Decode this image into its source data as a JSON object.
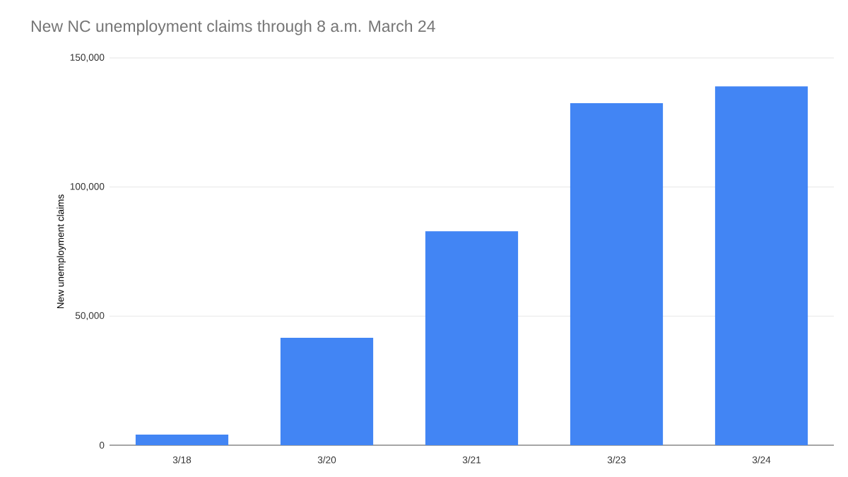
{
  "chart_data": {
    "type": "bar",
    "title": "New NC unemployment claims through 8 a.m. March 24",
    "ylabel": "New unemployment claims",
    "categories": [
      "3/18",
      "3/20",
      "3/21",
      "3/23",
      "3/24"
    ],
    "values": [
      4100,
      41600,
      82900,
      132500,
      139000
    ],
    "color": "#4285f4",
    "ylim": [
      0,
      150000
    ],
    "yticks": [
      {
        "value": 0,
        "label": "0"
      },
      {
        "value": 50000,
        "label": "50,000"
      },
      {
        "value": 100000,
        "label": "100,000"
      },
      {
        "value": 150000,
        "label": "150,000"
      }
    ],
    "grid": "y"
  }
}
